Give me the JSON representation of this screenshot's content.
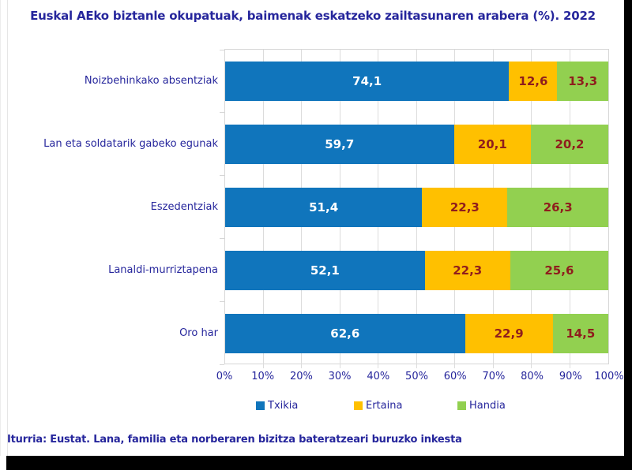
{
  "title": "Euskal AEko biztanle okupatuak, baimenak eskatzeko zailtasunaren arabera (%). 2022",
  "footer": "Iturria: Eustat. Lana, familia eta norberaren bizitza bateratzeari buruzko inkesta",
  "colors": {
    "title_text": "#26269C",
    "axis_text": "#26269C",
    "category_text": "#26269C",
    "value_label_on_blue": "#FFFFFF",
    "value_label_dark_red": "#8F1D1D",
    "gridline": "#DCDCDC",
    "frame_shadow": "#000000",
    "background": "#FFFFFF"
  },
  "chart_data": {
    "type": "bar",
    "orientation": "horizontal",
    "stacked": true,
    "title": "Euskal AEko biztanle okupatuak, baimenak eskatzeko zailtasunaren arabera (%). 2022",
    "xlabel": "",
    "ylabel": "",
    "xlim": [
      0,
      100
    ],
    "grid": true,
    "legend_position": "bottom",
    "x_ticks": [
      "0%",
      "10%",
      "20%",
      "30%",
      "40%",
      "50%",
      "60%",
      "70%",
      "80%",
      "90%",
      "100%"
    ],
    "categories": [
      "Noizbehinkako absentziak",
      "Lan eta soldatarik gabeko egunak",
      "Eszedentziak",
      "Lanaldi-murriztapena",
      "Oro har"
    ],
    "series": [
      {
        "name": "Txikia",
        "color": "#1075BC",
        "label_color": "#FFFFFF",
        "values": [
          74.1,
          59.7,
          51.4,
          52.1,
          62.6
        ],
        "labels": [
          "74,1",
          "59,7",
          "51,4",
          "52,1",
          "62,6"
        ]
      },
      {
        "name": "Ertaina",
        "color": "#FFC000",
        "label_color": "#8F1D1D",
        "values": [
          12.6,
          20.1,
          22.3,
          22.3,
          22.9
        ],
        "labels": [
          "12,6",
          "20,1",
          "22,3",
          "22,3",
          "22,9"
        ]
      },
      {
        "name": "Handia",
        "color": "#92D050",
        "label_color": "#8F1D1D",
        "values": [
          13.3,
          20.2,
          26.3,
          25.6,
          14.5
        ],
        "labels": [
          "13,3",
          "20,2",
          "26,3",
          "25,6",
          "14,5"
        ]
      }
    ]
  }
}
